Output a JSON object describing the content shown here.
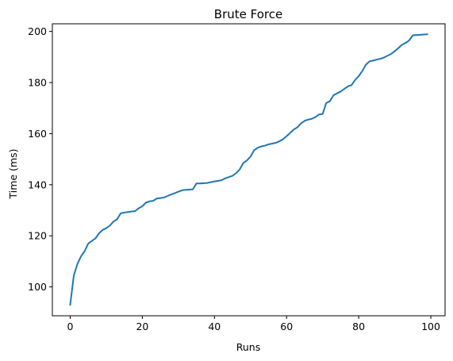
{
  "chart_data": {
    "type": "line",
    "title": "Brute Force",
    "xlabel": "Runs",
    "ylabel": "Time (ms)",
    "xlim": [
      -4.95,
      103.95
    ],
    "ylim": [
      88.7,
      203.0
    ],
    "xticks": [
      0,
      20,
      40,
      60,
      80,
      100
    ],
    "yticks": [
      100,
      120,
      140,
      160,
      180,
      200
    ],
    "grid": false,
    "legend": "none",
    "colors": {
      "line": "#1f77b4",
      "axes": "#000000",
      "background": "#ffffff"
    },
    "series": [
      {
        "x": [
          0,
          1,
          2,
          3,
          4,
          5,
          6,
          7,
          8,
          9,
          10,
          11,
          12,
          13,
          14,
          15,
          16,
          17,
          18,
          19,
          20,
          21,
          22,
          23,
          24,
          25,
          26,
          27,
          28,
          29,
          30,
          31,
          32,
          33,
          34,
          35,
          36,
          37,
          38,
          39,
          40,
          41,
          42,
          43,
          44,
          45,
          46,
          47,
          48,
          49,
          50,
          51,
          52,
          53,
          54,
          55,
          56,
          57,
          58,
          59,
          60,
          61,
          62,
          63,
          64,
          65,
          66,
          67,
          68,
          69,
          70,
          71,
          72,
          73,
          74,
          75,
          76,
          77,
          78,
          79,
          80,
          81,
          82,
          83,
          84,
          85,
          86,
          87,
          88,
          89,
          90,
          91,
          92,
          93,
          94,
          95,
          96,
          97,
          98,
          99
        ],
        "values": [
          93.0,
          104.5,
          109.0,
          112.0,
          114.0,
          117.0,
          118.0,
          119.0,
          121.0,
          122.3,
          123.0,
          124.0,
          125.6,
          126.5,
          128.8,
          129.1,
          129.3,
          129.5,
          129.7,
          130.8,
          131.6,
          133.0,
          133.5,
          133.7,
          134.6,
          134.8,
          135.0,
          135.6,
          136.2,
          136.7,
          137.3,
          137.8,
          138.0,
          138.1,
          138.2,
          140.5,
          140.5,
          140.6,
          140.7,
          141.0,
          141.3,
          141.5,
          141.8,
          142.5,
          143.0,
          143.5,
          144.5,
          146.0,
          148.5,
          149.5,
          151.0,
          153.5,
          154.5,
          155.0,
          155.3,
          155.8,
          156.1,
          156.4,
          157.0,
          157.8,
          159.0,
          160.3,
          161.6,
          162.5,
          164.0,
          165.0,
          165.5,
          165.8,
          166.5,
          167.5,
          167.7,
          172.0,
          172.7,
          175.0,
          175.8,
          176.5,
          177.5,
          178.5,
          179.0,
          181.0,
          182.5,
          184.5,
          187.0,
          188.3,
          188.6,
          189.0,
          189.3,
          189.8,
          190.5,
          191.2,
          192.3,
          193.5,
          194.8,
          195.5,
          196.5,
          198.5,
          198.6,
          198.7,
          198.8,
          198.9
        ]
      }
    ]
  }
}
